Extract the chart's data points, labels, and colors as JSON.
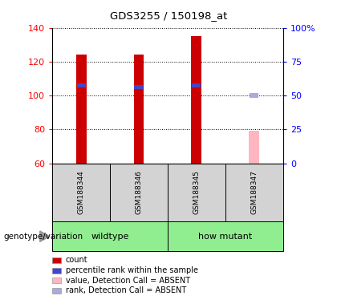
{
  "title": "GDS3255 / 150198_at",
  "samples": [
    "GSM188344",
    "GSM188346",
    "GSM188345",
    "GSM188347"
  ],
  "bar_data": {
    "GSM188344": {
      "count": 124,
      "rank": 106,
      "absent": false
    },
    "GSM188346": {
      "count": 124,
      "rank": 105,
      "absent": false
    },
    "GSM188345": {
      "count": 135,
      "rank": 106,
      "absent": false
    },
    "GSM188347": {
      "count": 79,
      "rank": 100,
      "absent": true
    }
  },
  "ylim_left": [
    60,
    140
  ],
  "ylim_right": [
    0,
    100
  ],
  "yticks_left": [
    60,
    80,
    100,
    120,
    140
  ],
  "yticks_right": [
    0,
    25,
    50,
    75,
    100
  ],
  "ytick_labels_right": [
    "0",
    "25",
    "50",
    "75",
    "100%"
  ],
  "bar_color_present": "#CC0000",
  "bar_color_absent": "#FFB6C1",
  "rank_color_present": "#4444CC",
  "rank_color_absent": "#AAAADD",
  "bar_width": 0.18,
  "legend_items": [
    {
      "color": "#CC0000",
      "label": "count"
    },
    {
      "color": "#4444CC",
      "label": "percentile rank within the sample"
    },
    {
      "color": "#FFB6C1",
      "label": "value, Detection Call = ABSENT"
    },
    {
      "color": "#AAAADD",
      "label": "rank, Detection Call = ABSENT"
    }
  ],
  "label_row1_color": "#D3D3D3",
  "label_row2_color": "#90EE90",
  "wildtype_label": "wildtype",
  "mutant_label": "how mutant",
  "genotype_label": "genotype/variation"
}
